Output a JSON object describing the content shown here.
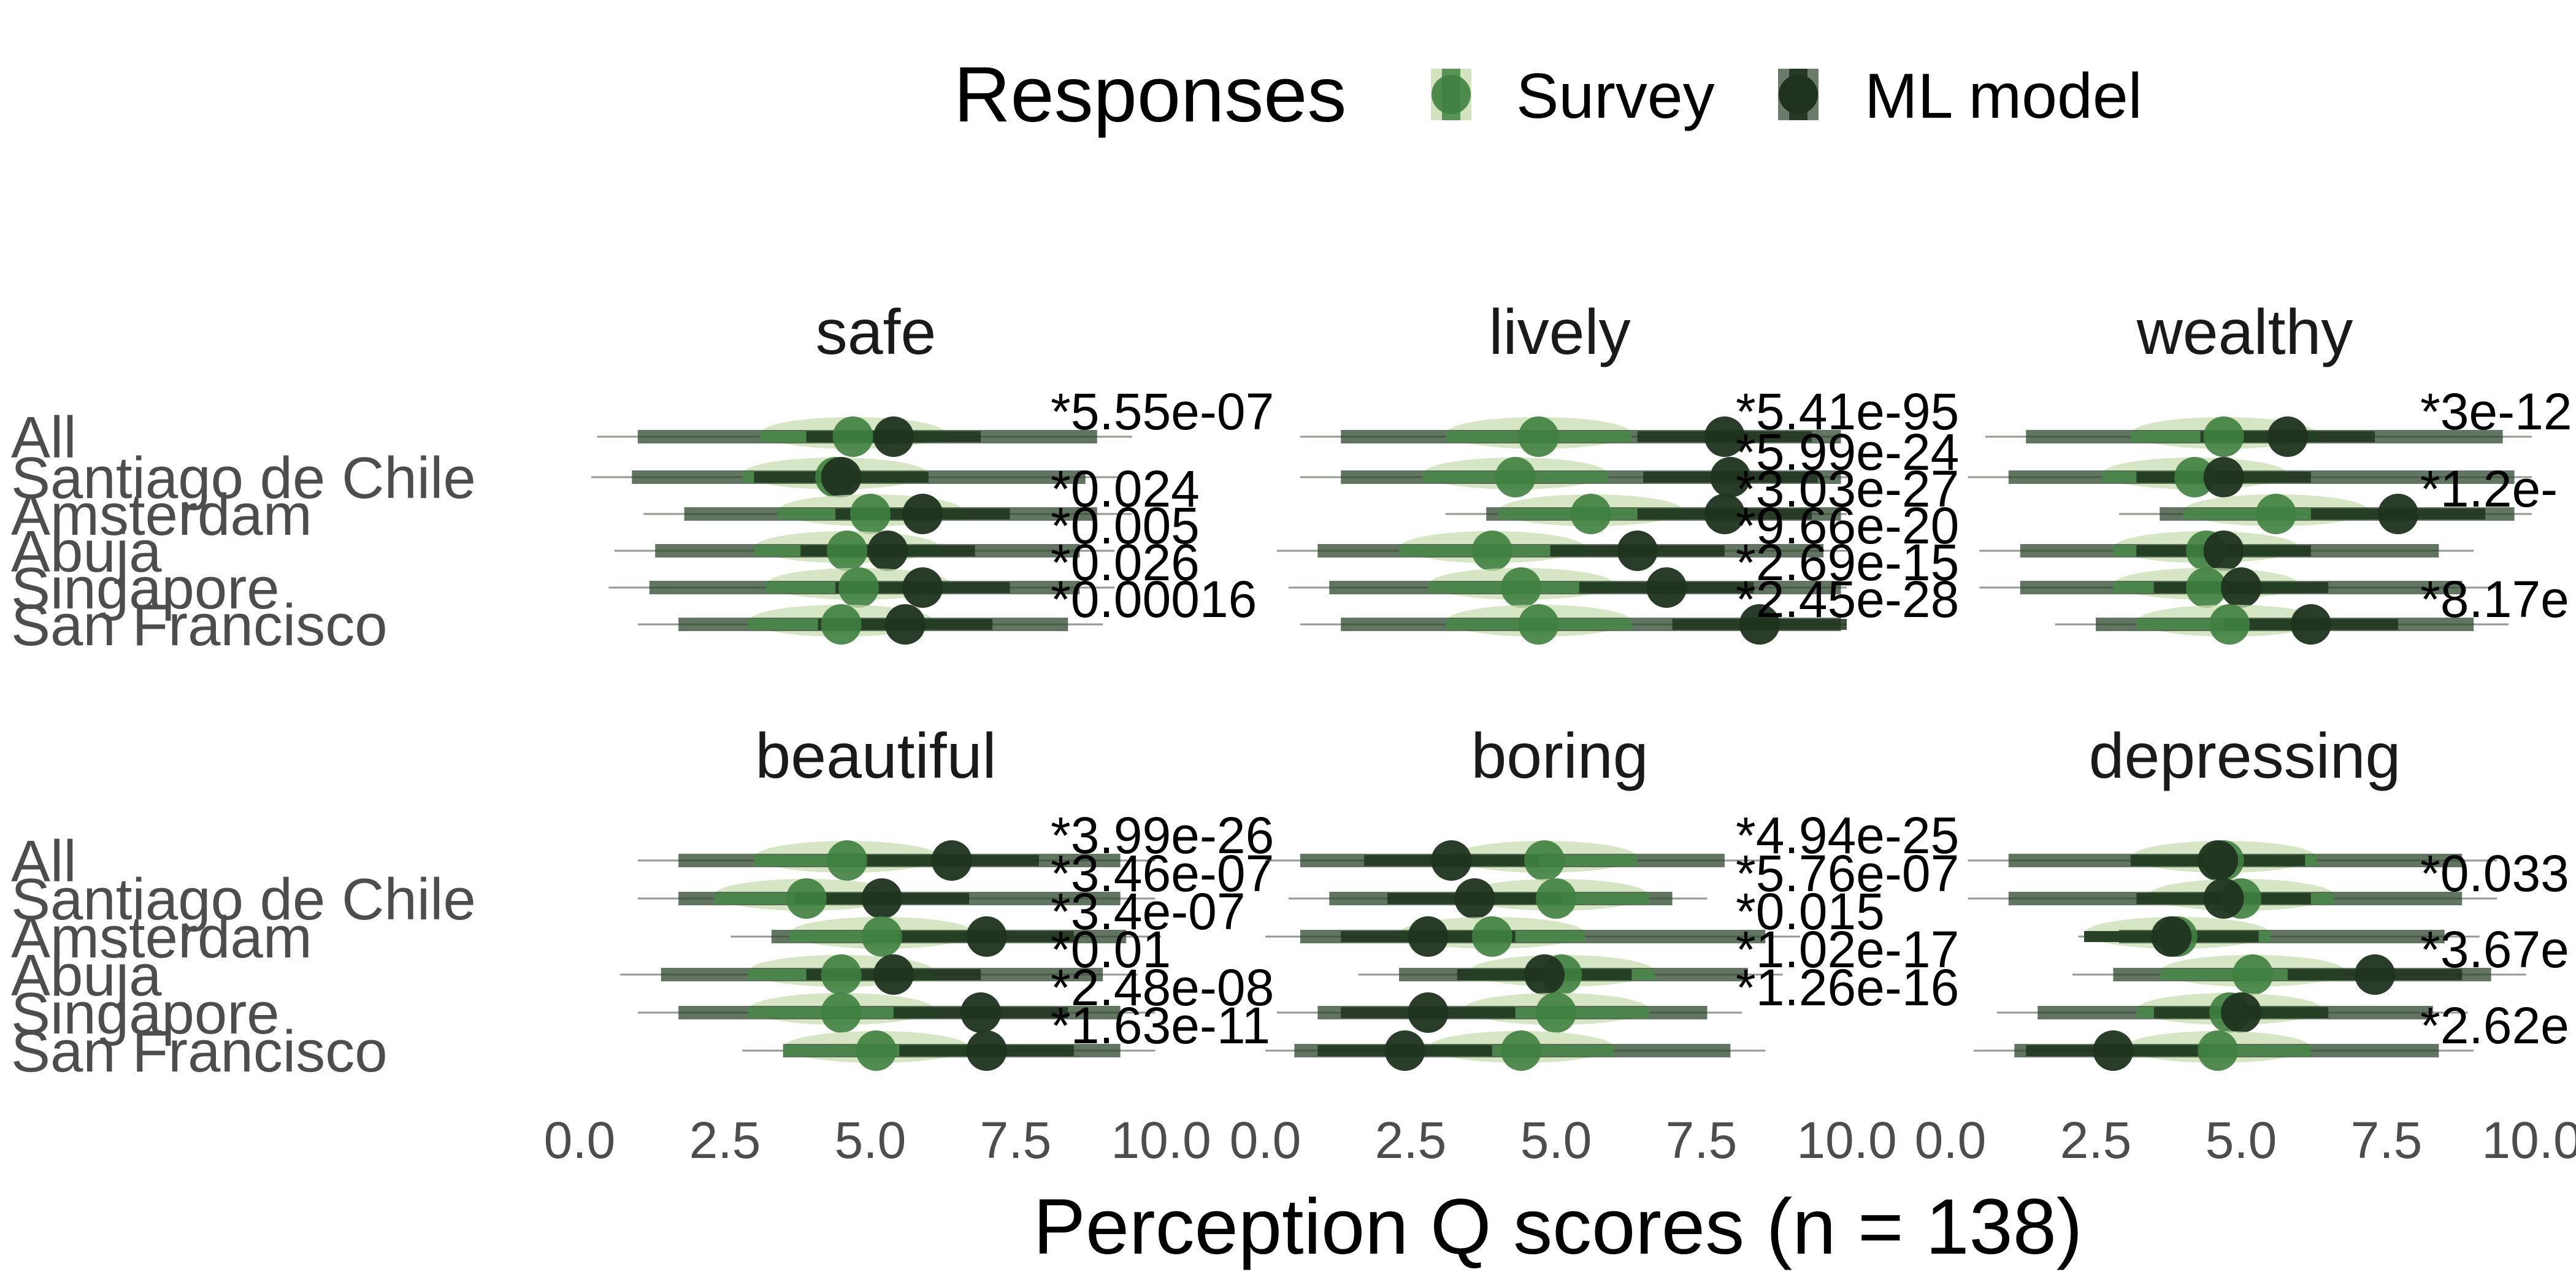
{
  "chart_data": {
    "type": "scatter",
    "xlabel": "Perception Q scores (n = 138)",
    "xlim": [
      0,
      10
    ],
    "xticks": [
      "0.0",
      "2.5",
      "5.0",
      "7.5",
      "10.0"
    ],
    "legend": {
      "title": "Responses",
      "position": "top",
      "entries": [
        "Survey",
        "ML model"
      ]
    },
    "colors": {
      "Survey": "#3f7f3f",
      "ML model": "#1f331f",
      "survey_band": "#c8dcb0",
      "ml_band": "#2d452d"
    },
    "categories": [
      "All",
      "Santiago de Chile",
      "Amsterdam",
      "Abuja",
      "Singapore",
      "San Francisco"
    ],
    "panels": [
      {
        "title": "safe",
        "series": [
          {
            "name": "Survey",
            "values": [
              4.7,
              4.4,
              5.0,
              4.6,
              4.8,
              4.5
            ]
          },
          {
            "name": "ML model",
            "values": [
              5.4,
              4.5,
              5.9,
              5.3,
              5.9,
              5.6
            ]
          }
        ],
        "ranges": [
          [
            1.0,
            8.9
          ],
          [
            0.9,
            8.7
          ],
          [
            1.8,
            8.9
          ],
          [
            1.3,
            8.6
          ],
          [
            1.2,
            8.6
          ],
          [
            1.7,
            8.4
          ]
        ],
        "pvalues": [
          "*5.55e-07",
          "",
          "*0.024",
          "*0.005",
          "*0.026",
          "*0.00016"
        ]
      },
      {
        "title": "lively",
        "series": [
          {
            "name": "Survey",
            "values": [
              4.7,
              4.3,
              5.6,
              3.9,
              4.4,
              4.7
            ]
          },
          {
            "name": "ML model",
            "values": [
              7.9,
              8.0,
              7.9,
              6.4,
              6.9,
              8.5
            ]
          }
        ],
        "ranges": [
          [
            1.3,
            9.9
          ],
          [
            1.3,
            9.9
          ],
          [
            3.8,
            9.9
          ],
          [
            0.9,
            9.6
          ],
          [
            1.1,
            9.9
          ],
          [
            1.3,
            9.9
          ]
        ],
        "pvalues": [
          "*5.41e-95",
          "*5.99e-24",
          "*3.03e-27",
          "*9.66e-20",
          "*2.69e-15",
          "*2.45e-28"
        ]
      },
      {
        "title": "wealthy",
        "series": [
          {
            "name": "Survey",
            "values": [
              4.7,
              4.2,
              5.6,
              4.4,
              4.4,
              4.8
            ]
          },
          {
            "name": "ML model",
            "values": [
              5.8,
              4.7,
              7.7,
              4.7,
              5.0,
              6.2
            ]
          }
        ],
        "ranges": [
          [
            1.3,
            9.5
          ],
          [
            1.0,
            9.7
          ],
          [
            3.6,
            9.7
          ],
          [
            1.2,
            8.4
          ],
          [
            1.2,
            8.8
          ],
          [
            2.5,
            9.0
          ]
        ],
        "pvalues": [
          "*3e-12",
          "",
          "*1.2e-",
          "",
          "",
          "*8.17e"
        ]
      },
      {
        "title": "beautiful",
        "series": [
          {
            "name": "Survey",
            "values": [
              4.6,
              3.9,
              5.2,
              4.5,
              4.5,
              5.1
            ]
          },
          {
            "name": "ML model",
            "values": [
              6.4,
              5.2,
              7.0,
              5.4,
              6.9,
              7.0
            ]
          }
        ],
        "ranges": [
          [
            1.7,
            9.3
          ],
          [
            1.7,
            9.3
          ],
          [
            3.3,
            9.4
          ],
          [
            1.4,
            9.0
          ],
          [
            1.7,
            9.3
          ],
          [
            3.5,
            9.3
          ]
        ],
        "pvalues": [
          "*3.99e-26",
          "*3.46e-07",
          "*3.4e-07",
          "*0.01",
          "*2.48e-08",
          "*1.63e-11"
        ]
      },
      {
        "title": "boring",
        "series": [
          {
            "name": "Survey",
            "values": [
              4.8,
              5.0,
              3.9,
              5.1,
              5.0,
              4.4
            ]
          },
          {
            "name": "ML model",
            "values": [
              3.2,
              3.6,
              2.8,
              4.8,
              2.8,
              2.4
            ]
          }
        ],
        "ranges": [
          [
            0.6,
            7.9
          ],
          [
            1.1,
            7.0
          ],
          [
            0.6,
            8.6
          ],
          [
            2.3,
            8.3
          ],
          [
            0.9,
            7.6
          ],
          [
            0.5,
            8.0
          ]
        ],
        "pvalues": [
          "*4.94e-25",
          "*5.76e-07",
          "*0.015",
          "*1.02e-17",
          "*1.26e-16",
          ""
        ]
      },
      {
        "title": "depressing",
        "series": [
          {
            "name": "Survey",
            "values": [
              4.7,
              5.0,
              3.9,
              5.2,
              4.8,
              4.6
            ]
          },
          {
            "name": "ML model",
            "values": [
              4.6,
              4.7,
              3.8,
              7.3,
              5.0,
              2.8
            ]
          }
        ],
        "ranges": [
          [
            1.0,
            8.8
          ],
          [
            1.0,
            8.8
          ],
          [
            2.9,
            8.5
          ],
          [
            2.8,
            9.3
          ],
          [
            1.5,
            8.3
          ],
          [
            1.1,
            8.4
          ]
        ],
        "pvalues": [
          "",
          "*0.033",
          "",
          "*3.67e",
          "",
          "*2.62e"
        ]
      }
    ]
  }
}
